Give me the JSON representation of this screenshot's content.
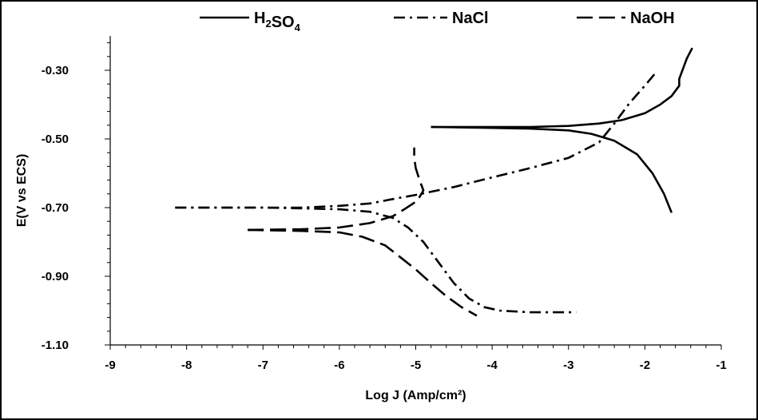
{
  "chart_data": {
    "type": "line",
    "xlabel": "Log J (Amp/cm²)",
    "ylabel": "E(V vs ECS)",
    "xlim": [
      -9,
      -1
    ],
    "ylim": [
      -1.1,
      -0.2
    ],
    "x_ticks": [
      "-9",
      "-8",
      "-7",
      "-6",
      "-5",
      "-4",
      "-3",
      "-2",
      "-1"
    ],
    "y_ticks": [
      "-0.30",
      "-0.50",
      "-0.70",
      "-0.90",
      "-1.10"
    ],
    "y_tick_values": [
      -0.3,
      -0.5,
      -0.7,
      -0.9,
      -1.1
    ],
    "legend_position": "top",
    "grid": false,
    "series": [
      {
        "name": "H₂SO₄",
        "style": "solid",
        "branches": [
          [
            [
              -4.8,
              -0.465
            ],
            [
              -4.0,
              -0.465
            ],
            [
              -3.5,
              -0.465
            ],
            [
              -3.0,
              -0.462
            ],
            [
              -2.6,
              -0.455
            ],
            [
              -2.3,
              -0.445
            ],
            [
              -2.0,
              -0.425
            ],
            [
              -1.8,
              -0.4
            ],
            [
              -1.65,
              -0.375
            ],
            [
              -1.55,
              -0.345
            ],
            [
              -1.55,
              -0.325
            ],
            [
              -1.5,
              -0.295
            ],
            [
              -1.45,
              -0.265
            ],
            [
              -1.38,
              -0.235
            ]
          ],
          [
            [
              -4.8,
              -0.465
            ],
            [
              -4.0,
              -0.468
            ],
            [
              -3.5,
              -0.47
            ],
            [
              -3.0,
              -0.475
            ],
            [
              -2.7,
              -0.485
            ],
            [
              -2.4,
              -0.505
            ],
            [
              -2.1,
              -0.545
            ],
            [
              -1.9,
              -0.6
            ],
            [
              -1.75,
              -0.66
            ],
            [
              -1.65,
              -0.715
            ]
          ]
        ]
      },
      {
        "name": "NaCl",
        "style": "dashdot",
        "branches": [
          [
            [
              -8.15,
              -0.7
            ],
            [
              -7.5,
              -0.7
            ],
            [
              -7.0,
              -0.7
            ],
            [
              -6.5,
              -0.7
            ],
            [
              -6.0,
              -0.695
            ],
            [
              -5.6,
              -0.688
            ],
            [
              -5.3,
              -0.675
            ],
            [
              -5.0,
              -0.663
            ],
            [
              -4.5,
              -0.64
            ],
            [
              -4.0,
              -0.612
            ],
            [
              -3.5,
              -0.585
            ],
            [
              -3.0,
              -0.555
            ],
            [
              -2.6,
              -0.51
            ],
            [
              -2.4,
              -0.455
            ],
            [
              -2.2,
              -0.395
            ],
            [
              -2.0,
              -0.345
            ],
            [
              -1.85,
              -0.305
            ]
          ],
          [
            [
              -8.15,
              -0.7
            ],
            [
              -7.0,
              -0.7
            ],
            [
              -6.5,
              -0.702
            ],
            [
              -6.0,
              -0.705
            ],
            [
              -5.6,
              -0.712
            ],
            [
              -5.3,
              -0.73
            ],
            [
              -5.1,
              -0.758
            ],
            [
              -4.9,
              -0.8
            ],
            [
              -4.7,
              -0.86
            ],
            [
              -4.5,
              -0.92
            ],
            [
              -4.3,
              -0.965
            ],
            [
              -4.1,
              -0.99
            ],
            [
              -3.9,
              -1.0
            ],
            [
              -3.5,
              -1.005
            ],
            [
              -2.9,
              -1.005
            ]
          ]
        ]
      },
      {
        "name": "NaOH",
        "style": "dashed",
        "branches": [
          [
            [
              -7.2,
              -0.765
            ],
            [
              -6.5,
              -0.763
            ],
            [
              -6.0,
              -0.758
            ],
            [
              -5.6,
              -0.745
            ],
            [
              -5.3,
              -0.725
            ],
            [
              -5.15,
              -0.705
            ],
            [
              -4.98,
              -0.68
            ],
            [
              -4.9,
              -0.65
            ],
            [
              -4.95,
              -0.62
            ],
            [
              -5.0,
              -0.585
            ],
            [
              -5.02,
              -0.555
            ],
            [
              -5.02,
              -0.525
            ]
          ],
          [
            [
              -7.2,
              -0.765
            ],
            [
              -6.5,
              -0.768
            ],
            [
              -6.0,
              -0.772
            ],
            [
              -5.7,
              -0.785
            ],
            [
              -5.4,
              -0.81
            ],
            [
              -5.2,
              -0.845
            ],
            [
              -5.0,
              -0.88
            ],
            [
              -4.8,
              -0.92
            ],
            [
              -4.6,
              -0.958
            ],
            [
              -4.4,
              -0.99
            ],
            [
              -4.2,
              -1.015
            ]
          ]
        ]
      }
    ]
  }
}
